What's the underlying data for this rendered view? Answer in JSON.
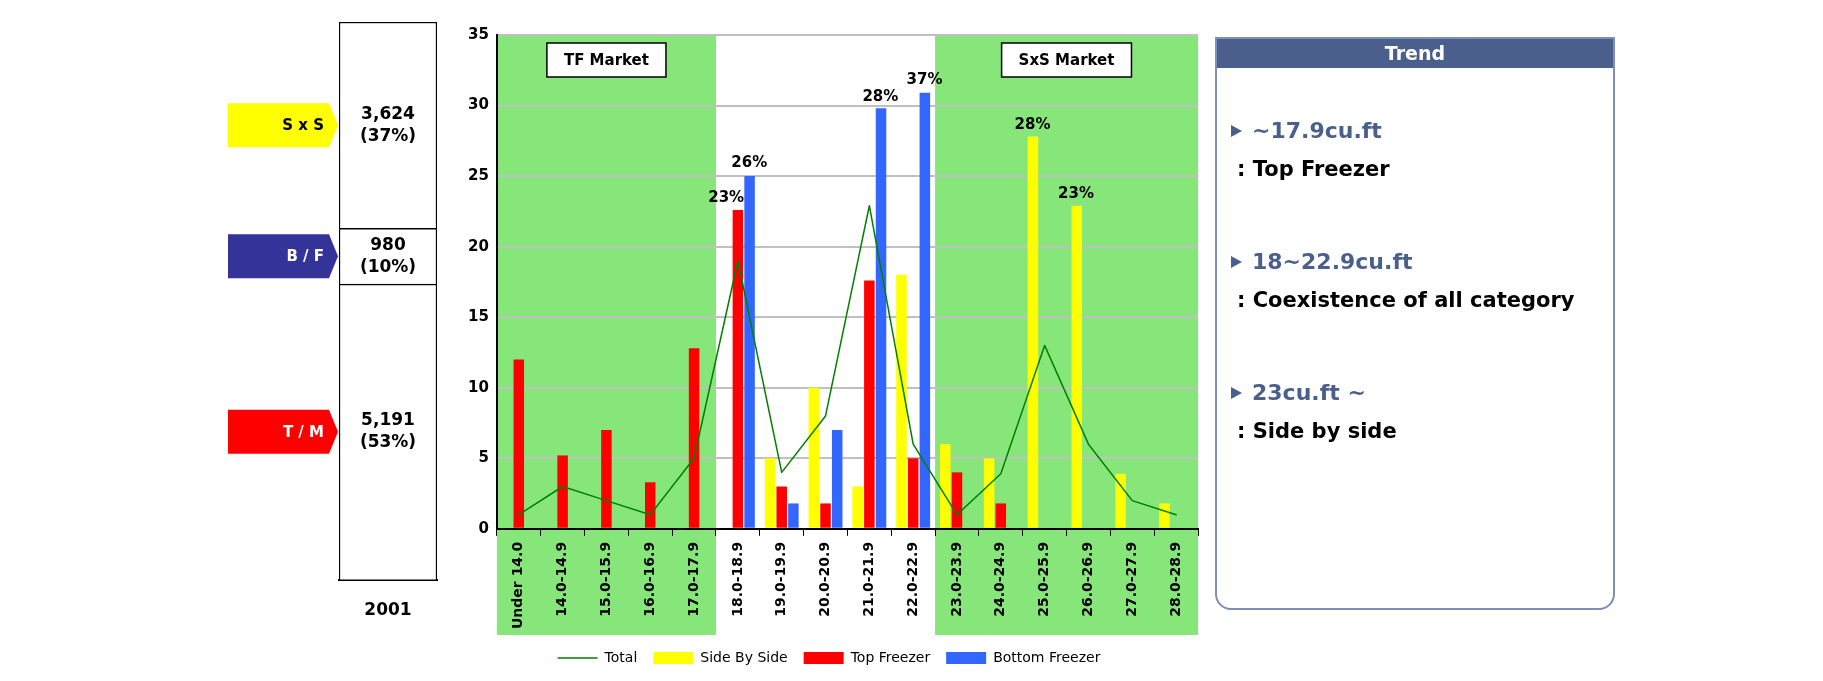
{
  "chart_data": [
    {
      "type": "bar",
      "stacked": true,
      "categories": [
        "2001"
      ],
      "series": [
        {
          "name": "T / M",
          "color": "#ffffff",
          "values": [
            5191
          ],
          "value_labels": [
            "5,191 (53%)"
          ]
        },
        {
          "name": "B / F",
          "color": "#ffffff",
          "values": [
            980
          ],
          "value_labels": [
            "980 (10%)"
          ]
        },
        {
          "name": "S x S",
          "color": "#ffffff",
          "values": [
            3624
          ],
          "value_labels": [
            "3,624 (37%)"
          ]
        }
      ]
    },
    {
      "type": "bar",
      "categories": [
        "Under 14.0",
        "14.0-14.9",
        "15.0-15.9",
        "16.0-16.9",
        "17.0-17.9",
        "18.0-18.9",
        "19.0-19.9",
        "20.0-20.9",
        "21.0-21.9",
        "22.0-22.9",
        "23.0-23.9",
        "24.0-24.9",
        "25.0-25.9",
        "26.0-26.9",
        "27.0-27.9",
        "28.0-28.9"
      ],
      "series": [
        {
          "name": "Side By Side",
          "color": "#ffff00",
          "values": [
            null,
            null,
            null,
            null,
            null,
            null,
            5,
            10,
            3,
            18,
            6,
            5,
            27.8,
            22.9,
            3.9,
            1.8
          ]
        },
        {
          "name": "Top Freezer",
          "color": "#ff0000",
          "values": [
            12,
            5.2,
            7,
            3.3,
            12.8,
            22.6,
            3,
            1.8,
            17.6,
            5,
            4,
            1.8,
            null,
            null,
            null,
            null
          ]
        },
        {
          "name": "Bottom Freezer",
          "color": "#3366ff",
          "values": [
            null,
            null,
            null,
            null,
            null,
            25,
            1.8,
            7,
            29.8,
            30.9,
            null,
            null,
            null,
            null,
            null,
            null
          ]
        },
        {
          "name": "Total",
          "type": "line",
          "color": "#008000",
          "values": [
            1,
            3,
            2,
            1,
            5,
            19,
            4,
            8,
            22.9,
            6,
            1,
            3.9,
            13,
            6,
            2,
            1
          ]
        }
      ],
      "annotations": [
        "23%",
        "26%",
        "28%",
        "37%",
        "28%",
        "23%"
      ],
      "ylim": [
        0,
        35
      ],
      "yticks": [
        0,
        5,
        10,
        15,
        20,
        25,
        30,
        35
      ],
      "grid": "y",
      "legend": "bottom",
      "bands": [
        {
          "axis": "x",
          "from": "Under 14.0",
          "to": "17.0-17.9",
          "label": "TF Market",
          "color": "#86e67a"
        },
        {
          "axis": "x",
          "from": "23.0-23.9",
          "to": "28.0-28.9",
          "label": "SxS Market",
          "color": "#86e67a"
        }
      ]
    },
    {
      "type": "other",
      "title": "Trend",
      "annotations": [
        "~17.9cu.ft",
        ": Top Freezer",
        "18~22.9cu.ft",
        ": Coexistence of all category",
        "23cu.ft ~",
        ": Side by side"
      ]
    }
  ]
}
